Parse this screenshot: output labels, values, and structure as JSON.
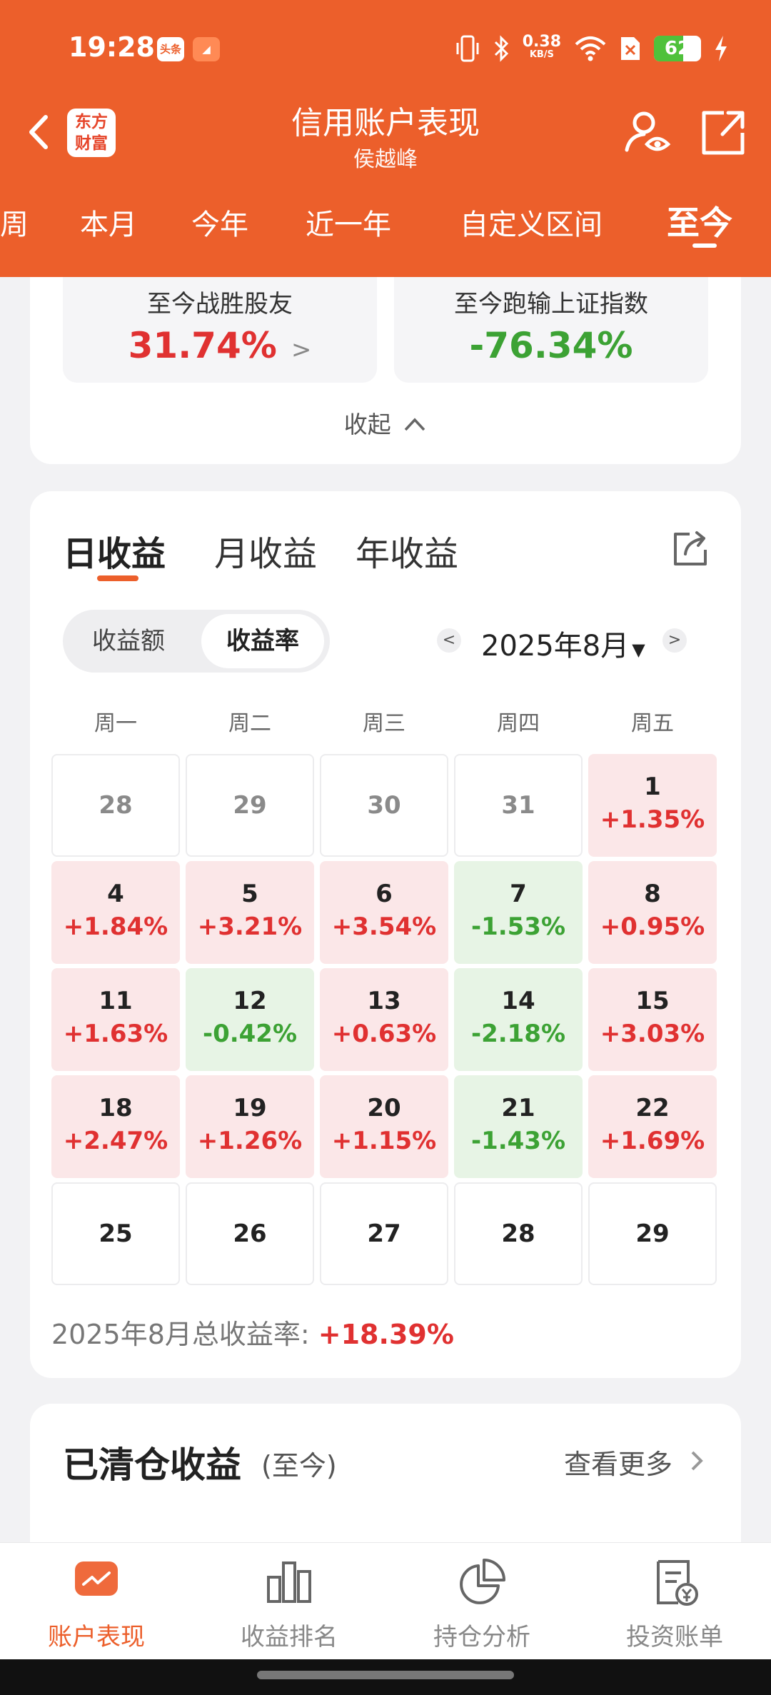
{
  "status_bar": {
    "time": "19:28",
    "app_badges": [
      "头条",
      "◢"
    ],
    "net_speed_value": "0.38",
    "net_speed_unit": "KB/S",
    "battery": "62",
    "battery_level": 0.62,
    "icons": [
      "vibrate-icon",
      "bluetooth-icon",
      "wifi-icon",
      "sim-icon",
      "battery-icon",
      "charging-icon"
    ]
  },
  "header": {
    "logo_line1": "东方",
    "logo_line2": "财富",
    "title": "信用账户表现",
    "subtitle": "侯越峰",
    "accent": "#ec5f2b"
  },
  "period_tabs": [
    {
      "label": "周"
    },
    {
      "label": "本月"
    },
    {
      "label": "今年"
    },
    {
      "label": "近一年"
    },
    {
      "label": "自定义区间"
    },
    {
      "label": "至今",
      "active": true
    }
  ],
  "stats": {
    "beat_label": "至今战胜股友",
    "beat_value": "31.74%",
    "lose_label": "至今跑输上证指数",
    "lose_value": "-76.34%",
    "collapse": "收起"
  },
  "profit_panel": {
    "tabs": [
      "日收益",
      "月收益",
      "年收益"
    ],
    "segment": [
      "收益额",
      "收益率"
    ],
    "month": "2025年8月",
    "weekdays": [
      "周一",
      "周二",
      "周三",
      "周四",
      "周五"
    ],
    "calendar": [
      [
        {
          "day": "28",
          "pct": "",
          "type": "empty",
          "muted": true
        },
        {
          "day": "29",
          "pct": "",
          "type": "empty",
          "muted": true
        },
        {
          "day": "30",
          "pct": "",
          "type": "empty",
          "muted": true
        },
        {
          "day": "31",
          "pct": "",
          "type": "empty",
          "muted": true
        },
        {
          "day": "1",
          "pct": "+1.35%",
          "type": "up"
        }
      ],
      [
        {
          "day": "4",
          "pct": "+1.84%",
          "type": "up"
        },
        {
          "day": "5",
          "pct": "+3.21%",
          "type": "up"
        },
        {
          "day": "6",
          "pct": "+3.54%",
          "type": "up"
        },
        {
          "day": "7",
          "pct": "-1.53%",
          "type": "down"
        },
        {
          "day": "8",
          "pct": "+0.95%",
          "type": "up"
        }
      ],
      [
        {
          "day": "11",
          "pct": "+1.63%",
          "type": "up"
        },
        {
          "day": "12",
          "pct": "-0.42%",
          "type": "down"
        },
        {
          "day": "13",
          "pct": "+0.63%",
          "type": "up"
        },
        {
          "day": "14",
          "pct": "-2.18%",
          "type": "down"
        },
        {
          "day": "15",
          "pct": "+3.03%",
          "type": "up"
        }
      ],
      [
        {
          "day": "18",
          "pct": "+2.47%",
          "type": "up"
        },
        {
          "day": "19",
          "pct": "+1.26%",
          "type": "up"
        },
        {
          "day": "20",
          "pct": "+1.15%",
          "type": "up"
        },
        {
          "day": "21",
          "pct": "-1.43%",
          "type": "down"
        },
        {
          "day": "22",
          "pct": "+1.69%",
          "type": "up"
        }
      ],
      [
        {
          "day": "25",
          "pct": "",
          "type": "empty"
        },
        {
          "day": "26",
          "pct": "",
          "type": "empty"
        },
        {
          "day": "27",
          "pct": "",
          "type": "empty"
        },
        {
          "day": "28",
          "pct": "",
          "type": "empty"
        },
        {
          "day": "29",
          "pct": "",
          "type": "empty"
        }
      ]
    ],
    "summary_label": "2025年8月总收益率:",
    "summary_value": "+18.39%"
  },
  "cleared": {
    "title": "已清仓收益",
    "sub": "(至今)",
    "more": "查看更多"
  },
  "bottom_nav": [
    {
      "label": "账户表现",
      "icon": "chart-icon",
      "active": true
    },
    {
      "label": "收益排名",
      "icon": "bar-chart-icon"
    },
    {
      "label": "持仓分析",
      "icon": "pie-chart-icon"
    },
    {
      "label": "投资账单",
      "icon": "bill-icon"
    }
  ],
  "colors": {
    "up": "#e03131",
    "down": "#3ca234",
    "up_bg": "#fbe7e8",
    "down_bg": "#e7f4e5"
  }
}
